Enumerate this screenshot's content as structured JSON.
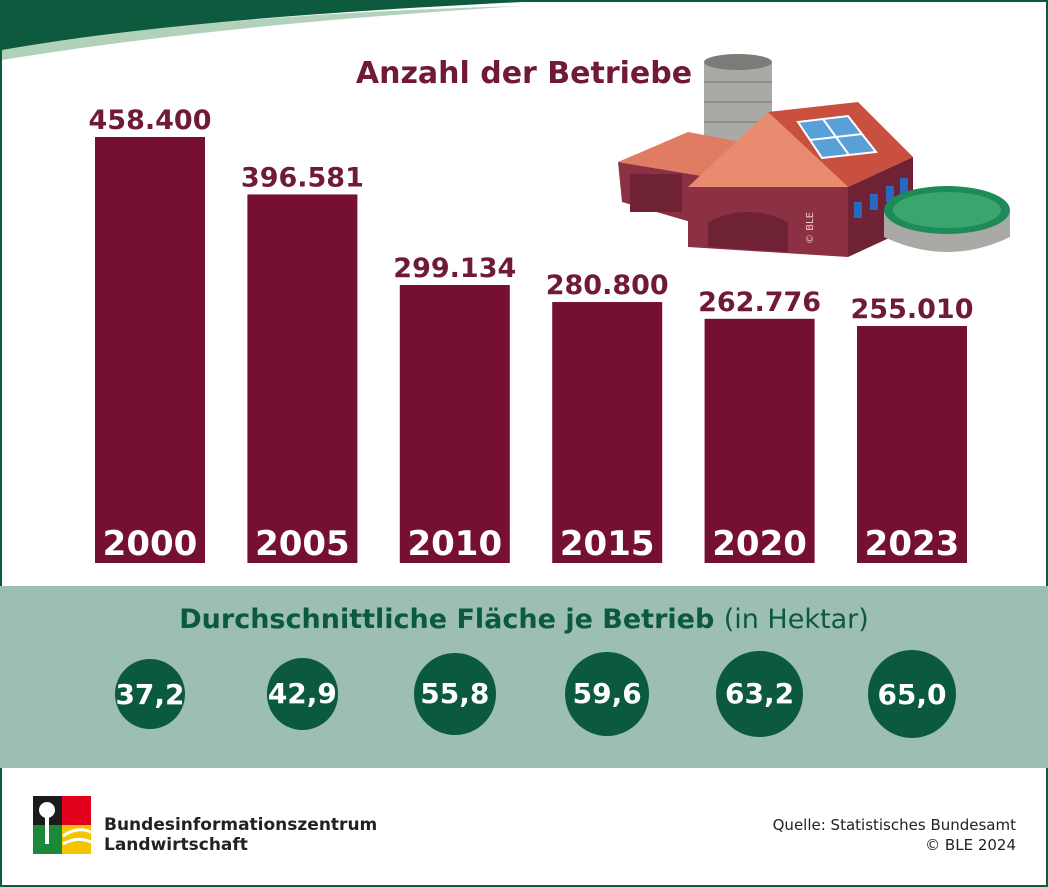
{
  "colors": {
    "bar": "#761031",
    "title": "#701a35",
    "band": "#9dbfb3",
    "circle": "#0b5a3d",
    "frame": "#0e5a3e"
  },
  "chart_data": {
    "type": "bar",
    "title": "Anzahl der Betriebe",
    "categories": [
      "2000",
      "2005",
      "2010",
      "2015",
      "2020",
      "2023"
    ],
    "values": [
      458400,
      396581,
      299134,
      280800,
      262776,
      255010
    ],
    "value_labels": [
      "458.400",
      "396.581",
      "299.134",
      "280.800",
      "262.776",
      "255.010"
    ],
    "ylim": [
      0,
      500000
    ],
    "xlabel": "",
    "ylabel": "",
    "grid": false,
    "secondary": {
      "title_bold": "Durchschnittliche Fläche je Betrieb",
      "title_unit": "(in Hektar)",
      "values": [
        37.2,
        42.9,
        55.8,
        59.6,
        63.2,
        65.0
      ],
      "labels": [
        "37,2",
        "42,9",
        "55,8",
        "59,6",
        "63,2",
        "65,0"
      ]
    }
  },
  "illustration": {
    "watermark": "© BLE",
    "icon": "farm-building-with-solar-and-silo"
  },
  "footer": {
    "org_line1": "Bundesinformationszentrum",
    "org_line2": "Landwirtschaft",
    "source": "Quelle: Statistisches Bundesamt",
    "copyright": "© BLE 2024"
  }
}
